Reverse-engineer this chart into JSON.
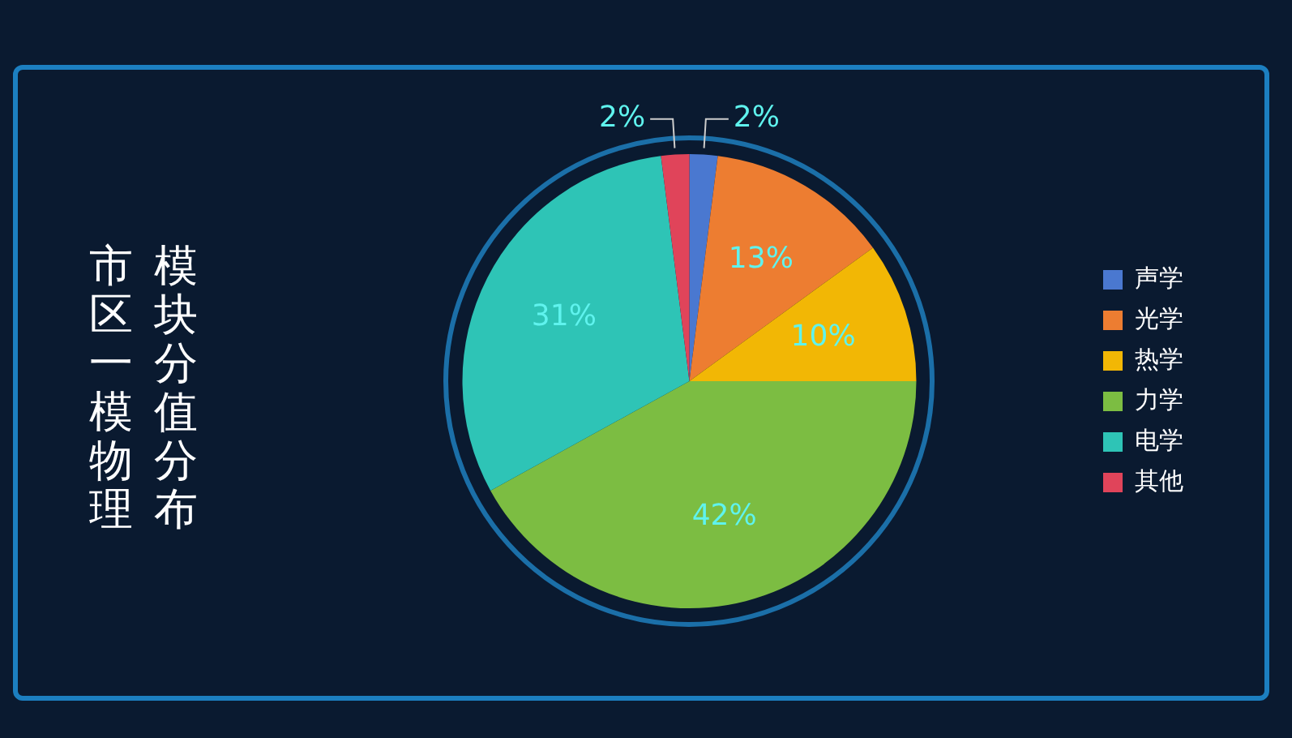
{
  "chart_data": {
    "type": "pie",
    "title": "市区一模物理模块分值分布",
    "categories": [
      "声学",
      "光学",
      "热学",
      "力学",
      "电学",
      "其他"
    ],
    "values": [
      2,
      13,
      10,
      42,
      31,
      2
    ],
    "colors": [
      "#4a78d0",
      "#ed7d31",
      "#f2b705",
      "#7cbd42",
      "#2ec4b6",
      "#e0445a"
    ],
    "value_labels": [
      "2%",
      "13%",
      "10%",
      "42%",
      "31%",
      "2%"
    ],
    "legend": "right"
  }
}
